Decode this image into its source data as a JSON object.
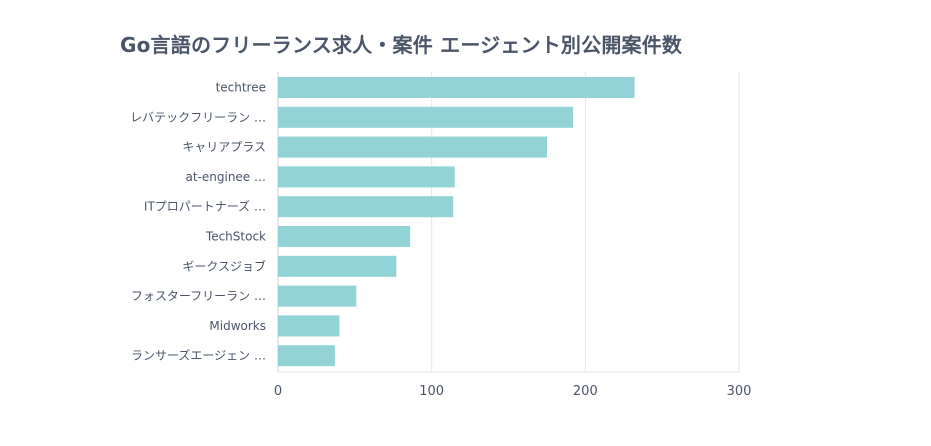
{
  "chart_data": {
    "type": "bar",
    "orientation": "horizontal",
    "title": "Go言語のフリーランス求人・案件 エージェント別公開案件数",
    "xlabel": "",
    "ylabel": "",
    "categories": [
      "techtree",
      "レバテックフリーラン …",
      "キャリアプラス",
      "at-enginee …",
      "ITプロパートナーズ …",
      "TechStock",
      "ギークスジョブ",
      "フォスターフリーラン …",
      "Midworks",
      "ランサーズエージェン …"
    ],
    "values": [
      232,
      192,
      175,
      115,
      114,
      86,
      77,
      51,
      40,
      37
    ],
    "xlim": [
      0,
      300
    ],
    "xticks": [
      0,
      100,
      200,
      300
    ],
    "grid": true,
    "legend": "none",
    "colors": {
      "bar": "#91d3d6",
      "grid": "#e6e6e6",
      "text": "#4a5568"
    }
  }
}
